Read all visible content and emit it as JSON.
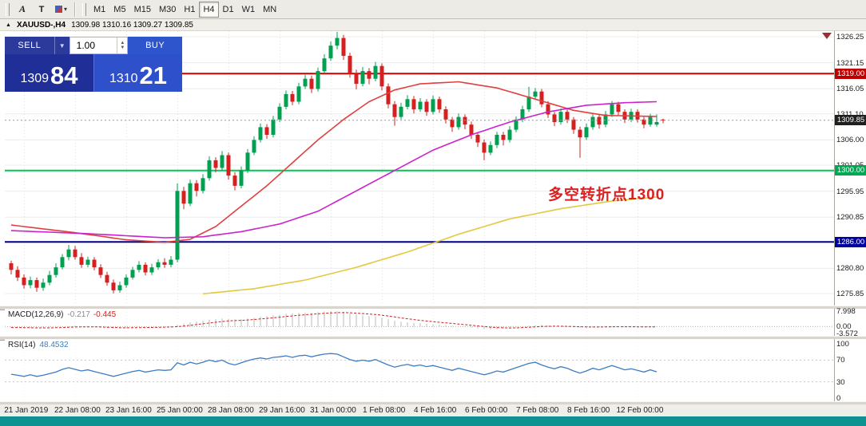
{
  "toolbar": {
    "tools": [
      "A",
      "T"
    ],
    "timeframes": [
      "M1",
      "M5",
      "M15",
      "M30",
      "H1",
      "H4",
      "D1",
      "W1",
      "MN"
    ],
    "active_timeframe": "H4"
  },
  "chart_header": {
    "symbol_tf": "XAUUSD-,H4",
    "ohlc": "1309.98 1310.16 1309.27 1309.85"
  },
  "trade_panel": {
    "sell_label": "SELL",
    "buy_label": "BUY",
    "volume": "1.00",
    "bid_main": "1309",
    "bid_pips": "84",
    "ask_main": "1310",
    "ask_pips": "21"
  },
  "annotation": {
    "text": "多空转折点1300",
    "color": "#d92121"
  },
  "price_axis": {
    "values": [
      1326.25,
      1321.15,
      1316.05,
      1311.1,
      1306.0,
      1301.05,
      1295.95,
      1290.85,
      1285.8,
      1280.8,
      1275.85
    ],
    "tags": [
      {
        "text": "1319.00",
        "price": 1319.0,
        "bg": "#c00000"
      },
      {
        "text": "1309.85",
        "price": 1309.85,
        "bg": "#1f1f1f"
      },
      {
        "text": "1300.00",
        "price": 1300.0,
        "bg": "#00a651"
      },
      {
        "text": "1286.00",
        "price": 1286.0,
        "bg": "#0000a0"
      }
    ]
  },
  "macd_panel": {
    "name": "MACD(12,26,9)",
    "value": "-0.217",
    "signal": "-0.445",
    "axis": [
      7.998,
      0,
      -3.572
    ]
  },
  "rsi_panel": {
    "name": "RSI(14)",
    "value": "48.4532",
    "axis": [
      100,
      70,
      30,
      0
    ]
  },
  "time_axis": [
    "21 Jan 2019",
    "22 Jan 08:00",
    "23 Jan 16:00",
    "25 Jan 00:00",
    "28 Jan 08:00",
    "29 Jan 16:00",
    "31 Jan 00:00",
    "1 Feb 08:00",
    "4 Feb 16:00",
    "6 Feb 00:00",
    "7 Feb 08:00",
    "8 Feb 16:00",
    "12 Feb 00:00"
  ],
  "chart_data": {
    "type": "candlestick",
    "symbol": "XAUUSD",
    "timeframe": "H4",
    "title": "XAUUSD-,H4 1309.98 1310.16 1309.27 1309.85",
    "price_range": [
      1275.85,
      1326.25
    ],
    "current_price": 1309.85,
    "hlines": [
      {
        "price": 1319.0,
        "color": "#cc0000",
        "name": "resistance-line-1319"
      },
      {
        "price": 1300.0,
        "color": "#00c853",
        "name": "support-line-1300"
      },
      {
        "price": 1286.0,
        "color": "#000090",
        "name": "support-line-1286"
      }
    ],
    "colors": {
      "up": "#00a050",
      "down": "#d61f1f"
    },
    "x_labels": [
      {
        "index": 2,
        "text": "21 Jan 2019"
      },
      {
        "index": 10,
        "text": "22 Jan 08:00"
      },
      {
        "index": 18,
        "text": "23 Jan 16:00"
      },
      {
        "index": 26,
        "text": "25 Jan 00:00"
      },
      {
        "index": 34,
        "text": "28 Jan 08:00"
      },
      {
        "index": 42,
        "text": "29 Jan 16:00"
      },
      {
        "index": 50,
        "text": "31 Jan 00:00"
      },
      {
        "index": 58,
        "text": "1 Feb 08:00"
      },
      {
        "index": 66,
        "text": "4 Feb 16:00"
      },
      {
        "index": 74,
        "text": "6 Feb 00:00"
      },
      {
        "index": 82,
        "text": "7 Feb 08:00"
      },
      {
        "index": 90,
        "text": "8 Feb 16:00"
      },
      {
        "index": 98,
        "text": "12 Feb 00:00"
      }
    ],
    "ohlc": [
      [
        1281.8,
        1282.3,
        1279.6,
        1280.5
      ],
      [
        1280.5,
        1281.2,
        1278.3,
        1279.0
      ],
      [
        1279.0,
        1279.6,
        1276.8,
        1277.5
      ],
      [
        1277.5,
        1279.2,
        1276.9,
        1278.5
      ],
      [
        1278.5,
        1279.0,
        1276.2,
        1277.0
      ],
      [
        1277.0,
        1278.8,
        1276.4,
        1278.0
      ],
      [
        1278.0,
        1280.3,
        1277.5,
        1279.5
      ],
      [
        1279.5,
        1281.8,
        1279.0,
        1281.0
      ],
      [
        1281.0,
        1283.6,
        1280.6,
        1283.0
      ],
      [
        1283.0,
        1285.4,
        1282.4,
        1284.5
      ],
      [
        1284.5,
        1285.2,
        1282.5,
        1283.0
      ],
      [
        1283.0,
        1283.8,
        1280.9,
        1281.5
      ],
      [
        1281.5,
        1283.1,
        1281.0,
        1282.5
      ],
      [
        1282.5,
        1283.0,
        1280.4,
        1281.0
      ],
      [
        1281.0,
        1281.6,
        1278.9,
        1279.5
      ],
      [
        1279.5,
        1280.1,
        1277.4,
        1278.0
      ],
      [
        1278.0,
        1278.6,
        1275.9,
        1276.5
      ],
      [
        1276.5,
        1278.2,
        1276.0,
        1277.5
      ],
      [
        1277.5,
        1279.6,
        1277.0,
        1279.0
      ],
      [
        1279.0,
        1281.1,
        1278.6,
        1280.5
      ],
      [
        1280.5,
        1282.2,
        1280.0,
        1281.5
      ],
      [
        1281.5,
        1282.0,
        1279.4,
        1280.0
      ],
      [
        1280.0,
        1281.7,
        1279.5,
        1281.0
      ],
      [
        1281.0,
        1282.6,
        1280.5,
        1282.0
      ],
      [
        1282.0,
        1282.8,
        1280.9,
        1281.5
      ],
      [
        1281.5,
        1283.2,
        1281.0,
        1282.5
      ],
      [
        1282.5,
        1297.5,
        1282.0,
        1296.0
      ],
      [
        1296.0,
        1296.8,
        1292.4,
        1293.5
      ],
      [
        1293.5,
        1298.2,
        1293.0,
        1297.5
      ],
      [
        1297.5,
        1298.1,
        1294.9,
        1296.0
      ],
      [
        1296.0,
        1299.3,
        1295.5,
        1298.5
      ],
      [
        1298.5,
        1302.8,
        1298.0,
        1302.0
      ],
      [
        1302.0,
        1302.6,
        1299.6,
        1300.5
      ],
      [
        1300.5,
        1303.8,
        1300.0,
        1303.0
      ],
      [
        1303.0,
        1303.5,
        1298.2,
        1299.0
      ],
      [
        1299.0,
        1299.7,
        1296.1,
        1297.0
      ],
      [
        1297.0,
        1300.8,
        1296.5,
        1300.0
      ],
      [
        1300.0,
        1304.2,
        1299.5,
        1303.5
      ],
      [
        1303.5,
        1306.7,
        1303.0,
        1306.0
      ],
      [
        1306.0,
        1309.2,
        1305.5,
        1308.5
      ],
      [
        1308.5,
        1309.1,
        1306.2,
        1307.0
      ],
      [
        1307.0,
        1310.7,
        1306.5,
        1310.0
      ],
      [
        1310.0,
        1313.2,
        1309.5,
        1312.5
      ],
      [
        1312.5,
        1315.7,
        1312.0,
        1315.0
      ],
      [
        1315.0,
        1315.6,
        1312.8,
        1313.5
      ],
      [
        1313.5,
        1317.2,
        1313.0,
        1316.5
      ],
      [
        1316.5,
        1318.8,
        1316.0,
        1318.0
      ],
      [
        1318.0,
        1318.6,
        1315.2,
        1316.0
      ],
      [
        1316.0,
        1320.2,
        1315.5,
        1319.5
      ],
      [
        1319.5,
        1322.8,
        1319.0,
        1322.0
      ],
      [
        1322.0,
        1325.3,
        1321.5,
        1324.5
      ],
      [
        1324.5,
        1327.2,
        1323.8,
        1326.0
      ],
      [
        1326.0,
        1326.6,
        1321.7,
        1322.5
      ],
      [
        1322.5,
        1323.1,
        1318.2,
        1319.0
      ],
      [
        1319.0,
        1319.8,
        1315.9,
        1317.0
      ],
      [
        1317.0,
        1320.3,
        1316.5,
        1319.5
      ],
      [
        1319.5,
        1320.1,
        1316.9,
        1318.0
      ],
      [
        1318.0,
        1321.3,
        1317.5,
        1320.5
      ],
      [
        1320.5,
        1321.0,
        1315.7,
        1316.5
      ],
      [
        1316.5,
        1317.1,
        1312.2,
        1313.0
      ],
      [
        1313.0,
        1313.6,
        1308.8,
        1310.5
      ],
      [
        1310.5,
        1313.3,
        1310.0,
        1312.5
      ],
      [
        1312.5,
        1314.8,
        1312.0,
        1314.0
      ],
      [
        1314.0,
        1314.6,
        1311.2,
        1312.0
      ],
      [
        1312.0,
        1314.2,
        1311.5,
        1313.5
      ],
      [
        1313.5,
        1314.0,
        1310.7,
        1311.5
      ],
      [
        1311.5,
        1314.7,
        1311.0,
        1314.0
      ],
      [
        1314.0,
        1314.5,
        1311.3,
        1312.0
      ],
      [
        1312.0,
        1312.6,
        1309.2,
        1310.0
      ],
      [
        1310.0,
        1310.5,
        1307.6,
        1308.5
      ],
      [
        1308.5,
        1311.2,
        1308.0,
        1310.5
      ],
      [
        1310.5,
        1311.0,
        1308.1,
        1309.0
      ],
      [
        1309.0,
        1309.6,
        1306.2,
        1307.0
      ],
      [
        1307.0,
        1307.5,
        1304.6,
        1305.5
      ],
      [
        1305.5,
        1306.1,
        1302.0,
        1303.5
      ],
      [
        1303.5,
        1305.7,
        1303.0,
        1305.0
      ],
      [
        1305.0,
        1307.6,
        1304.4,
        1307.0
      ],
      [
        1307.0,
        1307.6,
        1304.9,
        1306.0
      ],
      [
        1306.0,
        1308.7,
        1305.5,
        1308.0
      ],
      [
        1308.0,
        1310.6,
        1307.5,
        1310.0
      ],
      [
        1310.0,
        1312.7,
        1309.5,
        1312.0
      ],
      [
        1312.0,
        1316.4,
        1311.5,
        1314.5
      ],
      [
        1314.5,
        1316.2,
        1313.9,
        1315.5
      ],
      [
        1315.5,
        1316.0,
        1312.4,
        1313.0
      ],
      [
        1313.0,
        1313.6,
        1310.3,
        1311.0
      ],
      [
        1311.0,
        1311.5,
        1308.7,
        1309.5
      ],
      [
        1309.5,
        1312.2,
        1309.0,
        1311.5
      ],
      [
        1311.5,
        1312.0,
        1309.3,
        1310.0
      ],
      [
        1310.0,
        1310.5,
        1307.2,
        1308.0
      ],
      [
        1308.0,
        1308.6,
        1302.5,
        1306.5
      ],
      [
        1306.5,
        1309.2,
        1306.0,
        1308.5
      ],
      [
        1308.5,
        1311.1,
        1308.0,
        1310.5
      ],
      [
        1310.5,
        1311.0,
        1308.2,
        1309.0
      ],
      [
        1309.0,
        1311.7,
        1308.5,
        1311.0
      ],
      [
        1311.0,
        1313.6,
        1310.5,
        1313.0
      ],
      [
        1313.0,
        1313.5,
        1310.8,
        1311.5
      ],
      [
        1311.5,
        1312.0,
        1309.3,
        1310.0
      ],
      [
        1310.0,
        1312.1,
        1309.5,
        1311.5
      ],
      [
        1311.5,
        1312.0,
        1309.4,
        1310.0
      ],
      [
        1310.0,
        1310.5,
        1308.3,
        1309.0
      ],
      [
        1309.0,
        1311.1,
        1308.6,
        1310.5
      ],
      [
        1309.0,
        1311.0,
        1308.6,
        1309.5
      ],
      [
        1309.98,
        1310.16,
        1309.27,
        1309.85
      ]
    ],
    "ma_lines": [
      {
        "name": "ma-red",
        "color": "#e04040",
        "points": [
          [
            0,
            1289.3
          ],
          [
            10,
            1287.8
          ],
          [
            18,
            1286.4
          ],
          [
            24,
            1285.9
          ],
          [
            28,
            1286.5
          ],
          [
            32,
            1289
          ],
          [
            36,
            1293
          ],
          [
            40,
            1297
          ],
          [
            44,
            1301.5
          ],
          [
            48,
            1306
          ],
          [
            52,
            1310
          ],
          [
            56,
            1313.5
          ],
          [
            60,
            1315.8
          ],
          [
            64,
            1317
          ],
          [
            70,
            1317.4
          ],
          [
            76,
            1316.2
          ],
          [
            82,
            1314
          ],
          [
            88,
            1311.8
          ],
          [
            93,
            1310.8
          ],
          [
            101,
            1310.6
          ]
        ]
      },
      {
        "name": "ma-magenta",
        "color": "#cc22cc",
        "points": [
          [
            0,
            1288.2
          ],
          [
            12,
            1287.6
          ],
          [
            24,
            1286.8
          ],
          [
            30,
            1287
          ],
          [
            36,
            1288
          ],
          [
            42,
            1289.5
          ],
          [
            48,
            1292
          ],
          [
            54,
            1296
          ],
          [
            60,
            1300
          ],
          [
            66,
            1304
          ],
          [
            72,
            1307
          ],
          [
            78,
            1309.5
          ],
          [
            84,
            1311.5
          ],
          [
            90,
            1312.8
          ],
          [
            96,
            1313.3
          ],
          [
            101,
            1313.5
          ]
        ]
      },
      {
        "name": "ma-yellow",
        "color": "#e3c93f",
        "points": [
          [
            30,
            1275.8
          ],
          [
            38,
            1276.8
          ],
          [
            46,
            1278.5
          ],
          [
            54,
            1281
          ],
          [
            62,
            1284
          ],
          [
            70,
            1287.5
          ],
          [
            78,
            1290.5
          ],
          [
            86,
            1292.5
          ],
          [
            94,
            1294
          ],
          [
            101,
            1294.8
          ]
        ]
      }
    ],
    "macd": {
      "range": [
        -3.572,
        7.998
      ],
      "values": [
        -0.5,
        -0.6,
        -0.8,
        -0.7,
        -0.9,
        -0.8,
        -0.6,
        -0.4,
        -0.1,
        0.2,
        0.3,
        0.1,
        0.0,
        -0.2,
        -0.5,
        -0.8,
        -1.1,
        -1.0,
        -0.8,
        -0.5,
        -0.3,
        -0.4,
        -0.3,
        -0.1,
        0.0,
        0.1,
        0.8,
        1.5,
        2.2,
        2.6,
        3.0,
        3.5,
        3.8,
        4.2,
        4.0,
        3.7,
        3.8,
        4.2,
        4.6,
        5.1,
        5.4,
        5.8,
        6.2,
        6.6,
        6.8,
        7.1,
        7.3,
        7.2,
        7.5,
        7.8,
        8.0,
        7.9,
        7.4,
        6.8,
        6.2,
        5.8,
        5.4,
        5.2,
        4.6,
        3.8,
        3.0,
        2.5,
        2.2,
        1.9,
        1.7,
        1.4,
        1.2,
        1.0,
        0.8,
        0.4,
        0.0,
        -0.3,
        -0.6,
        -1.0,
        -1.3,
        -1.5,
        -1.4,
        -1.2,
        -0.9,
        -0.5,
        0.0,
        0.4,
        0.7,
        0.8,
        0.6,
        0.3,
        0.1,
        -0.1,
        -0.4,
        -0.6,
        -0.5,
        -0.3,
        -0.2,
        0.0,
        0.1,
        0.0,
        -0.1,
        -0.2,
        -0.3,
        -0.25,
        -0.22,
        -0.217
      ]
    },
    "rsi": {
      "levels": [
        70,
        30
      ],
      "values": [
        44,
        42,
        40,
        43,
        40,
        42,
        45,
        48,
        53,
        56,
        53,
        50,
        52,
        49,
        46,
        43,
        40,
        43,
        46,
        49,
        51,
        48,
        50,
        52,
        51,
        52,
        65,
        61,
        66,
        63,
        66,
        70,
        67,
        70,
        64,
        61,
        65,
        69,
        72,
        74,
        72,
        75,
        76,
        78,
        75,
        78,
        79,
        76,
        79,
        81,
        82,
        81,
        76,
        71,
        68,
        70,
        68,
        71,
        66,
        61,
        57,
        60,
        62,
        59,
        61,
        58,
        60,
        57,
        54,
        51,
        55,
        52,
        49,
        46,
        43,
        46,
        50,
        48,
        52,
        56,
        60,
        64,
        66,
        61,
        57,
        54,
        58,
        55,
        50,
        46,
        50,
        55,
        52,
        56,
        60,
        56,
        52,
        54,
        51,
        48,
        52,
        48.45
      ]
    }
  }
}
